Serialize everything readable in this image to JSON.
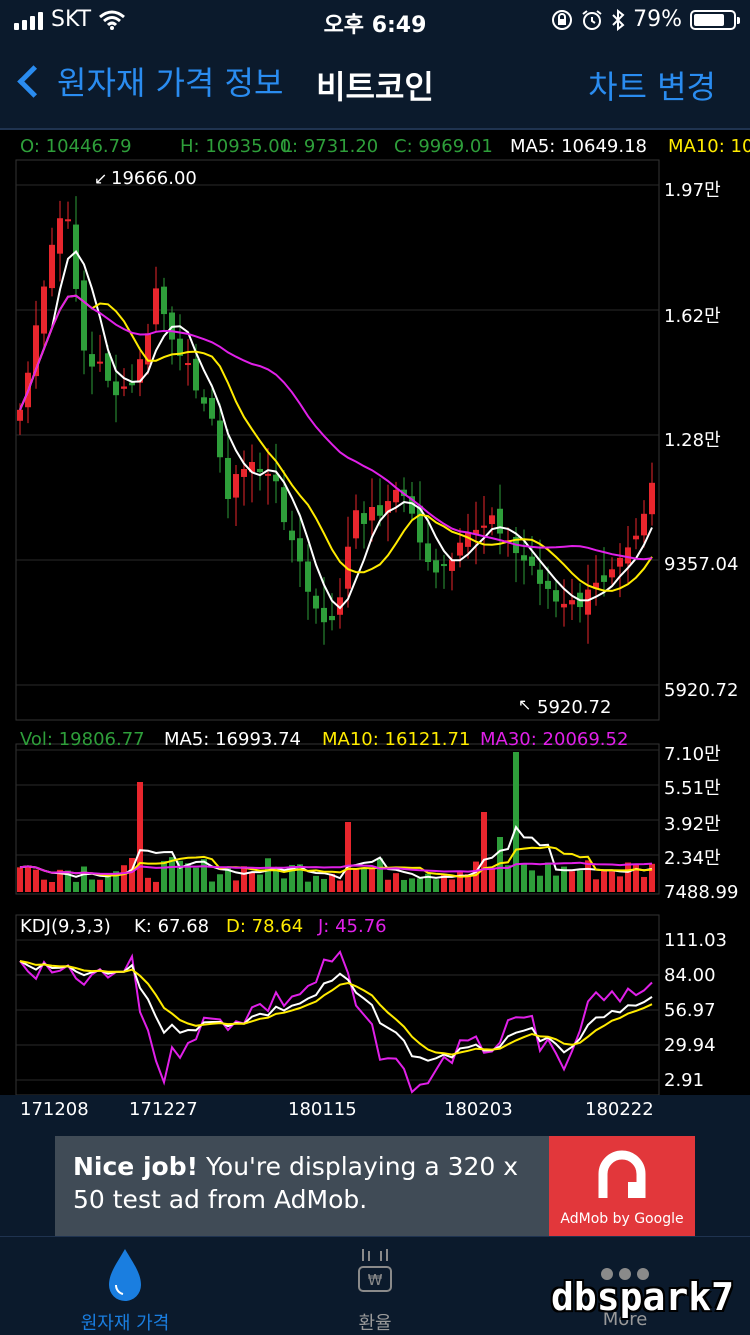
{
  "status": {
    "carrier": "SKT",
    "time": "오후 6:49",
    "battery": "79%",
    "battery_level": 0.79
  },
  "nav": {
    "back_label": "원자재 가격 정보",
    "title": "비트코인",
    "right_label": "차트 변경",
    "accent": "#2a8cf0"
  },
  "ohlc_text": {
    "o": "O: 10446.79",
    "h": "H: 10935.00",
    "l": "L: 9731.20",
    "c": "C: 9969.01",
    "ma5": "MA5: 10649.18",
    "ma10": "MA10: 10"
  },
  "price_axis": [
    "1.97만",
    "1.62만",
    "1.28만",
    "9357.04",
    "5920.72"
  ],
  "annotations": {
    "high": "19666.00",
    "low": "5920.72"
  },
  "volume_text": {
    "vol": "Vol: 19806.77",
    "ma5": "MA5: 16993.74",
    "ma10": "MA10: 16121.71",
    "ma30": "MA30: 20069.52"
  },
  "volume_axis": [
    "7.10만",
    "5.51만",
    "3.92만",
    "2.34만",
    "7488.99"
  ],
  "kdj_text": {
    "name": "KDJ(9,3,3)",
    "k": "K: 67.68",
    "d": "D: 78.64",
    "j": "J: 45.76"
  },
  "kdj_axis": [
    "111.03",
    "84.00",
    "56.97",
    "29.94",
    "2.91"
  ],
  "dates": [
    "171208",
    "171227",
    "180115",
    "180203",
    "180222"
  ],
  "colors": {
    "up": "#e8262d",
    "down": "#2e9e3a",
    "ma5": "#ffffff",
    "ma10": "#ffeb00",
    "ma30": "#e020e8",
    "vol_label": "#2e9e3a",
    "grid": "#2a2a2a"
  },
  "ad": {
    "headline": "Nice job!",
    "body": " You're displaying a 320 x 50 test ad from AdMob.",
    "brand": "AdMob by Google"
  },
  "tabs": [
    {
      "label": "원자재 가격",
      "icon": "water-drop-icon",
      "active": true
    },
    {
      "label": "환율",
      "icon": "currency-exchange-icon",
      "active": false
    },
    {
      "label": "More",
      "icon": "more-dots-icon",
      "active": false
    }
  ],
  "watermark": "dbspark7",
  "chart_data": {
    "type": "candlestick",
    "x": [
      "171208",
      "171227",
      "180115",
      "180203",
      "180222"
    ],
    "price_range": [
      5920.72,
      19666.0
    ],
    "highest": 19666.0,
    "lowest": 5920.72,
    "last_ohlc": {
      "open": 10446.79,
      "high": 10935.0,
      "low": 9731.2,
      "close": 9969.01
    },
    "ma": {
      "ma5": 10649.18
    },
    "volume": {
      "vol": 19806.77,
      "ma5": 16993.74,
      "ma10": 16121.71,
      "ma30": 20069.52,
      "range": [
        7488.99,
        71000
      ]
    },
    "kdj": {
      "k": 67.68,
      "d": 78.64,
      "j": 45.76,
      "range": [
        2.91,
        111.03
      ]
    }
  }
}
